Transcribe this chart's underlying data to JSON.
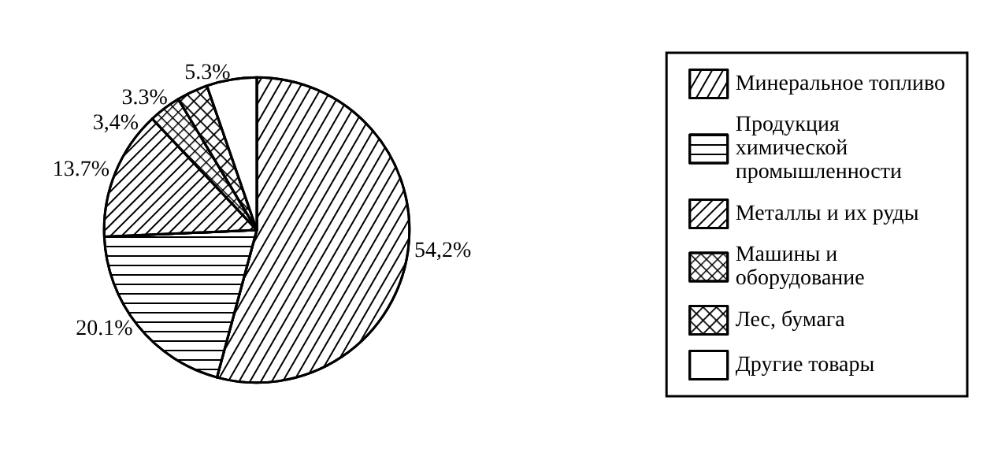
{
  "chart_data": {
    "type": "pie",
    "categories": [
      "Минеральное топливо",
      "Продукция\nхимической\nпромышленности",
      "Металлы и их руды",
      "Машины и\nоборудование",
      "Лес, бумага",
      "Другие товары"
    ],
    "values": [
      54.2,
      20.1,
      13.7,
      3.4,
      3.3,
      5.3
    ],
    "value_labels": [
      "54,2%",
      "20.1%",
      "13.7%",
      "3,4%",
      "3.3%",
      "5.3%"
    ],
    "colors": [
      "#ffffff",
      "#ffffff",
      "#ffffff",
      "#ffffff",
      "#ffffff",
      "#ffffff"
    ],
    "legend": "right"
  }
}
